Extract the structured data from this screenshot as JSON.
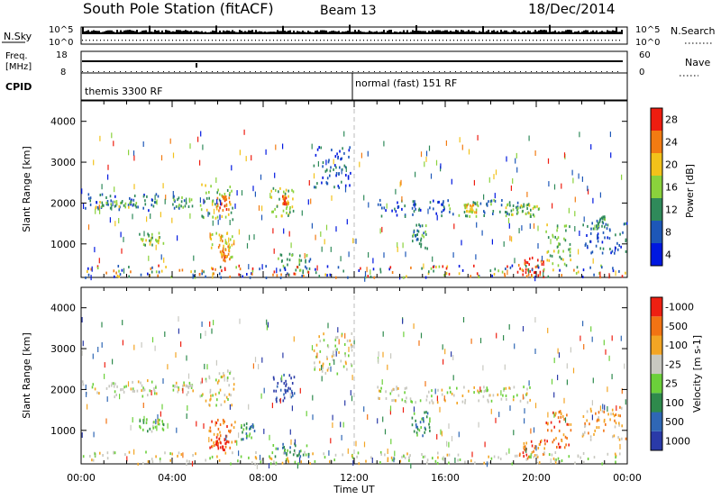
{
  "header": {
    "title": "South Pole Station (fitACF)",
    "beam": "Beam 13",
    "date": "18/Dec/2014"
  },
  "nsky_panel": {
    "left_label": "N.Sky",
    "right_label": "N.Search",
    "left_ticks": [
      "10^5",
      "10^0"
    ],
    "right_ticks": [
      "10^5",
      "10^0"
    ]
  },
  "freq_panel": {
    "left_label_1": "Freq.",
    "left_label_2": "[MHz]",
    "right_label": "Nave",
    "left_ticks": [
      "18",
      "8"
    ],
    "right_ticks": [
      "60",
      "0"
    ]
  },
  "cpid_panel": {
    "label": "CPID",
    "modes": [
      {
        "name": "themis 3300 RF",
        "start_hour": 0
      },
      {
        "name": "normal (fast) 151 RF",
        "start_hour": 12
      }
    ]
  },
  "chart_data": [
    {
      "type": "heatmap",
      "name": "power",
      "ylabel": "Slant Range [km]",
      "xlabel": "Time UT",
      "x_range_hours": [
        0,
        24
      ],
      "ylim": [
        180,
        4500
      ],
      "y_ticks": [
        1000,
        2000,
        3000,
        4000
      ],
      "x_tick_labels": [
        "00:00",
        "04:00",
        "08:00",
        "12:00",
        "16:00",
        "20:00",
        "00:00"
      ],
      "colorbar": {
        "label": "Power [dB]",
        "ticks": [
          "4",
          "8",
          "12",
          "16",
          "20",
          "24",
          "28"
        ],
        "colors": [
          "#0018e0",
          "#1d57b8",
          "#2f8a5a",
          "#8ad23c",
          "#f2c21a",
          "#f27b12",
          "#ee1d10"
        ]
      },
      "features": [
        {
          "t": [
            0.0,
            3.4
          ],
          "r": [
            1850,
            2250
          ],
          "level": 1
        },
        {
          "t": [
            0.6,
            2.4
          ],
          "r": [
            1900,
            2100
          ],
          "level": 3
        },
        {
          "t": [
            2.5,
            3.6
          ],
          "r": [
            1000,
            1300
          ],
          "level": 3
        },
        {
          "t": [
            4.0,
            4.9
          ],
          "r": [
            1900,
            2200
          ],
          "level": 2
        },
        {
          "t": [
            5.2,
            6.7
          ],
          "r": [
            1600,
            2500
          ],
          "level": 3
        },
        {
          "t": [
            5.9,
            6.5
          ],
          "r": [
            1800,
            2200
          ],
          "level": 5
        },
        {
          "t": [
            5.6,
            6.7
          ],
          "r": [
            700,
            1300
          ],
          "level": 4
        },
        {
          "t": [
            6.1,
            6.5
          ],
          "r": [
            600,
            900
          ],
          "level": 5
        },
        {
          "t": [
            8.3,
            9.3
          ],
          "r": [
            1700,
            2400
          ],
          "level": 3
        },
        {
          "t": [
            8.8,
            9.1
          ],
          "r": [
            2000,
            2200
          ],
          "level": 5
        },
        {
          "t": [
            8.6,
            10.1
          ],
          "r": [
            300,
            800
          ],
          "level": 2
        },
        {
          "t": [
            10.2,
            11.9
          ],
          "r": [
            2400,
            3400
          ],
          "level": 1
        },
        {
          "t": [
            13.0,
            16.0
          ],
          "r": [
            1700,
            2100
          ],
          "level": 1
        },
        {
          "t": [
            14.5,
            15.3
          ],
          "r": [
            900,
            1500
          ],
          "level": 2
        },
        {
          "t": [
            16.0,
            20.0
          ],
          "r": [
            1700,
            2100
          ],
          "level": 2
        },
        {
          "t": [
            16.8,
            17.4
          ],
          "r": [
            1800,
            2000
          ],
          "level": 4
        },
        {
          "t": [
            18.5,
            20.2
          ],
          "r": [
            1700,
            2000
          ],
          "level": 3
        },
        {
          "t": [
            19.2,
            20.3
          ],
          "r": [
            200,
            700
          ],
          "level": 6
        },
        {
          "t": [
            20.4,
            21.5
          ],
          "r": [
            500,
            1500
          ],
          "level": 3
        },
        {
          "t": [
            22.0,
            24.0
          ],
          "r": [
            800,
            1600
          ],
          "level": 1
        },
        {
          "t": [
            22.6,
            23.0
          ],
          "r": [
            1400,
            1700
          ],
          "level": 2
        },
        {
          "t": [
            0.0,
            24.0
          ],
          "r": [
            200,
            500
          ],
          "level": 0
        }
      ]
    },
    {
      "type": "heatmap",
      "name": "velocity",
      "ylabel": "Slant Range [km]",
      "xlabel": "Time UT",
      "x_range_hours": [
        0,
        24
      ],
      "ylim": [
        180,
        4500
      ],
      "y_ticks": [
        1000,
        2000,
        3000,
        4000
      ],
      "x_tick_labels": [
        "00:00",
        "04:00",
        "08:00",
        "12:00",
        "16:00",
        "20:00",
        "00:00"
      ],
      "colorbar": {
        "label": "Velocity [m s-1]",
        "ticks": [
          "1000",
          "500",
          "100",
          "25",
          "-25",
          "-100",
          "-500",
          "-1000"
        ],
        "colors": [
          "#2a3aa8",
          "#2f67b5",
          "#2e8a4c",
          "#6bd03a",
          "#c8c8c0",
          "#f3a524",
          "#f27313",
          "#ee2012"
        ]
      },
      "features": [
        {
          "t": [
            0.0,
            3.4
          ],
          "r": [
            1850,
            2250
          ],
          "level": 4
        },
        {
          "t": [
            2.5,
            3.6
          ],
          "r": [
            1000,
            1300
          ],
          "level": 3
        },
        {
          "t": [
            4.0,
            4.9
          ],
          "r": [
            1900,
            2200
          ],
          "level": 4
        },
        {
          "t": [
            5.2,
            6.7
          ],
          "r": [
            1600,
            2500
          ],
          "level": 4
        },
        {
          "t": [
            5.6,
            6.8
          ],
          "r": [
            600,
            1300
          ],
          "level": 6
        },
        {
          "t": [
            5.9,
            6.4
          ],
          "r": [
            550,
            900
          ],
          "level": 7
        },
        {
          "t": [
            8.4,
            9.4
          ],
          "r": [
            1700,
            2400
          ],
          "level": 0
        },
        {
          "t": [
            8.4,
            10.0
          ],
          "r": [
            350,
            700
          ],
          "level": 2
        },
        {
          "t": [
            7.0,
            7.6
          ],
          "r": [
            800,
            1200
          ],
          "level": 2
        },
        {
          "t": [
            10.2,
            11.9
          ],
          "r": [
            2400,
            3400
          ],
          "level": 4
        },
        {
          "t": [
            13.0,
            16.0
          ],
          "r": [
            1700,
            2100
          ],
          "level": 4
        },
        {
          "t": [
            14.5,
            15.3
          ],
          "r": [
            900,
            1500
          ],
          "level": 2
        },
        {
          "t": [
            16.0,
            20.0
          ],
          "r": [
            1700,
            2100
          ],
          "level": 4
        },
        {
          "t": [
            19.2,
            20.4
          ],
          "r": [
            300,
            800
          ],
          "level": 6
        },
        {
          "t": [
            20.4,
            21.5
          ],
          "r": [
            600,
            1500
          ],
          "level": 6
        },
        {
          "t": [
            22.0,
            24.0
          ],
          "r": [
            800,
            1600
          ],
          "level": 5
        },
        {
          "t": [
            0.0,
            24.0
          ],
          "r": [
            200,
            500
          ],
          "level": 4
        }
      ]
    }
  ]
}
